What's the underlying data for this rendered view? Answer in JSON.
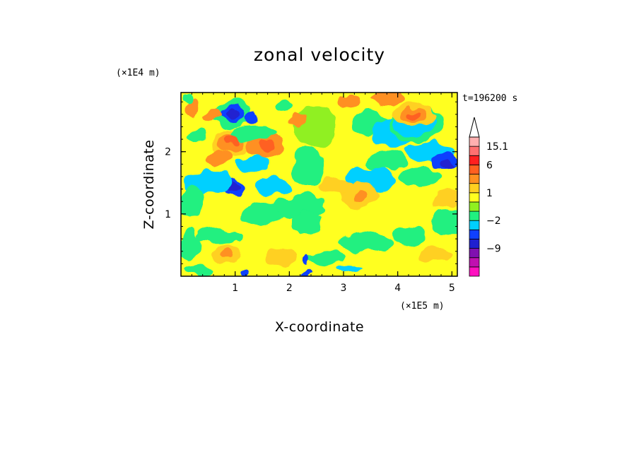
{
  "chart_data": {
    "type": "heatmap",
    "title": "zonal velocity",
    "xlabel": "X-coordinate",
    "ylabel": "Z-coordinate",
    "x_unit": "(×1E5 m)",
    "y_unit": "(×1E4 m)",
    "time_label": "t=196200 s",
    "xlim": [
      0.0,
      5.1
    ],
    "ylim": [
      0.0,
      2.95
    ],
    "x_ticks": [
      1,
      2,
      3,
      4,
      5
    ],
    "y_ticks": [
      1,
      2
    ],
    "colorbar": {
      "levels": [
        {
          "color": "#ff10c0"
        },
        {
          "color": "#c010b0"
        },
        {
          "color": "#8010b0"
        },
        {
          "color": "#2020d0"
        },
        {
          "color": "#1040ff"
        },
        {
          "color": "#00d0ff"
        },
        {
          "color": "#20f080"
        },
        {
          "color": "#90f020"
        },
        {
          "color": "#ffff20"
        },
        {
          "color": "#ffd020"
        },
        {
          "color": "#ff9020"
        },
        {
          "color": "#ff6020"
        },
        {
          "color": "#ff2020"
        },
        {
          "color": "#ff7070"
        },
        {
          "color": "#ffb0b0"
        }
      ],
      "labels": [
        {
          "text": "15.1",
          "level_top": 14
        },
        {
          "text": "6",
          "level_top": 12
        },
        {
          "text": "1",
          "level_top": 9
        },
        {
          "text": "−2",
          "level_top": 6
        },
        {
          "text": "−9",
          "level_top": 3
        }
      ]
    },
    "base_color": "#ffff20",
    "features": [
      {
        "x": 0.95,
        "z": 2.6,
        "rx": 0.35,
        "rz": 0.22,
        "color": "#20f080"
      },
      {
        "x": 0.95,
        "z": 2.6,
        "rx": 0.22,
        "rz": 0.14,
        "color": "#1040ff"
      },
      {
        "x": 0.95,
        "z": 2.6,
        "rx": 0.12,
        "rz": 0.08,
        "color": "#2020d0"
      },
      {
        "x": 1.3,
        "z": 2.55,
        "rx": 0.12,
        "rz": 0.1,
        "color": "#1040ff"
      },
      {
        "x": 0.6,
        "z": 2.6,
        "rx": 0.15,
        "rz": 0.1,
        "color": "#ff9020"
      },
      {
        "x": 0.2,
        "z": 2.7,
        "rx": 0.15,
        "rz": 0.12,
        "color": "#ff9020"
      },
      {
        "x": 0.9,
        "z": 2.15,
        "rx": 0.35,
        "rz": 0.22,
        "color": "#ffd020"
      },
      {
        "x": 0.9,
        "z": 2.15,
        "rx": 0.25,
        "rz": 0.15,
        "color": "#ff9020"
      },
      {
        "x": 0.95,
        "z": 2.2,
        "rx": 0.12,
        "rz": 0.07,
        "color": "#ff6020"
      },
      {
        "x": 1.55,
        "z": 2.1,
        "rx": 0.35,
        "rz": 0.2,
        "color": "#ff9020"
      },
      {
        "x": 1.6,
        "z": 2.1,
        "rx": 0.15,
        "rz": 0.08,
        "color": "#ff6020"
      },
      {
        "x": 0.7,
        "z": 1.9,
        "rx": 0.22,
        "rz": 0.12,
        "color": "#ff9020"
      },
      {
        "x": 1.35,
        "z": 1.8,
        "rx": 0.35,
        "rz": 0.12,
        "color": "#00d0ff"
      },
      {
        "x": 1.35,
        "z": 2.3,
        "rx": 0.4,
        "rz": 0.12,
        "color": "#20f080"
      },
      {
        "x": 0.95,
        "z": 1.45,
        "rx": 0.2,
        "rz": 0.12,
        "color": "#1040ff"
      },
      {
        "x": 0.95,
        "z": 1.45,
        "rx": 0.12,
        "rz": 0.07,
        "color": "#2020d0"
      },
      {
        "x": 0.5,
        "z": 1.5,
        "rx": 0.45,
        "rz": 0.2,
        "color": "#00d0ff"
      },
      {
        "x": 1.7,
        "z": 1.45,
        "rx": 0.3,
        "rz": 0.15,
        "color": "#00d0ff"
      },
      {
        "x": 0.2,
        "z": 1.2,
        "rx": 0.2,
        "rz": 0.25,
        "color": "#20f080"
      },
      {
        "x": 1.5,
        "z": 1.0,
        "rx": 0.4,
        "rz": 0.18,
        "color": "#20f080"
      },
      {
        "x": 2.2,
        "z": 1.1,
        "rx": 0.45,
        "rz": 0.2,
        "color": "#20f080"
      },
      {
        "x": 2.35,
        "z": 1.75,
        "rx": 0.3,
        "rz": 0.3,
        "color": "#20f080"
      },
      {
        "x": 2.5,
        "z": 2.4,
        "rx": 0.4,
        "rz": 0.35,
        "color": "#90f020"
      },
      {
        "x": 2.15,
        "z": 2.5,
        "rx": 0.15,
        "rz": 0.1,
        "color": "#ff9020"
      },
      {
        "x": 3.5,
        "z": 2.45,
        "rx": 0.35,
        "rz": 0.2,
        "color": "#20f080"
      },
      {
        "x": 3.1,
        "z": 2.8,
        "rx": 0.2,
        "rz": 0.1,
        "color": "#ff9020"
      },
      {
        "x": 3.9,
        "z": 2.3,
        "rx": 0.4,
        "rz": 0.25,
        "color": "#00d0ff"
      },
      {
        "x": 4.35,
        "z": 2.45,
        "rx": 0.5,
        "rz": 0.3,
        "color": "#20f080"
      },
      {
        "x": 4.3,
        "z": 2.45,
        "rx": 0.4,
        "rz": 0.2,
        "color": "#00d0ff"
      },
      {
        "x": 4.6,
        "z": 2.0,
        "rx": 0.45,
        "rz": 0.15,
        "color": "#00d0ff"
      },
      {
        "x": 4.85,
        "z": 1.85,
        "rx": 0.25,
        "rz": 0.12,
        "color": "#1040ff"
      },
      {
        "x": 4.9,
        "z": 1.8,
        "rx": 0.12,
        "rz": 0.06,
        "color": "#2020d0"
      },
      {
        "x": 4.3,
        "z": 2.6,
        "rx": 0.4,
        "rz": 0.18,
        "color": "#ffd020"
      },
      {
        "x": 4.3,
        "z": 2.6,
        "rx": 0.25,
        "rz": 0.12,
        "color": "#ff9020"
      },
      {
        "x": 4.3,
        "z": 2.6,
        "rx": 0.12,
        "rz": 0.06,
        "color": "#ff6020"
      },
      {
        "x": 3.8,
        "z": 2.85,
        "rx": 0.3,
        "rz": 0.12,
        "color": "#ff9020"
      },
      {
        "x": 3.5,
        "z": 1.55,
        "rx": 0.45,
        "rz": 0.2,
        "color": "#00d0ff"
      },
      {
        "x": 3.8,
        "z": 1.85,
        "rx": 0.35,
        "rz": 0.15,
        "color": "#20f080"
      },
      {
        "x": 3.3,
        "z": 1.3,
        "rx": 0.35,
        "rz": 0.2,
        "color": "#ffd020"
      },
      {
        "x": 3.3,
        "z": 1.3,
        "rx": 0.15,
        "rz": 0.1,
        "color": "#ff9020"
      },
      {
        "x": 2.85,
        "z": 1.45,
        "rx": 0.3,
        "rz": 0.15,
        "color": "#ffd020"
      },
      {
        "x": 4.9,
        "z": 1.25,
        "rx": 0.3,
        "rz": 0.15,
        "color": "#ffd020"
      },
      {
        "x": 4.4,
        "z": 1.6,
        "rx": 0.4,
        "rz": 0.15,
        "color": "#20f080"
      },
      {
        "x": 4.9,
        "z": 0.85,
        "rx": 0.3,
        "rz": 0.2,
        "color": "#20f080"
      },
      {
        "x": 4.2,
        "z": 0.65,
        "rx": 0.3,
        "rz": 0.15,
        "color": "#20f080"
      },
      {
        "x": 3.4,
        "z": 0.55,
        "rx": 0.5,
        "rz": 0.15,
        "color": "#20f080"
      },
      {
        "x": 2.3,
        "z": 0.85,
        "rx": 0.25,
        "rz": 0.2,
        "color": "#20f080"
      },
      {
        "x": 2.7,
        "z": 0.3,
        "rx": 0.35,
        "rz": 0.1,
        "color": "#20f080"
      },
      {
        "x": 0.15,
        "z": 0.5,
        "rx": 0.2,
        "rz": 0.25,
        "color": "#20f080"
      },
      {
        "x": 0.7,
        "z": 0.65,
        "rx": 0.4,
        "rz": 0.12,
        "color": "#20f080"
      },
      {
        "x": 0.85,
        "z": 0.35,
        "rx": 0.25,
        "rz": 0.15,
        "color": "#ffd020"
      },
      {
        "x": 0.85,
        "z": 0.35,
        "rx": 0.12,
        "rz": 0.08,
        "color": "#ff9020"
      },
      {
        "x": 0.3,
        "z": 0.1,
        "rx": 0.25,
        "rz": 0.08,
        "color": "#20f080"
      },
      {
        "x": 1.2,
        "z": 0.05,
        "rx": 0.1,
        "rz": 0.06,
        "color": "#1040ff"
      },
      {
        "x": 2.35,
        "z": 0.25,
        "rx": 0.05,
        "rz": 0.1,
        "color": "#1040ff"
      },
      {
        "x": 2.3,
        "z": 0.05,
        "rx": 0.12,
        "rz": 0.05,
        "color": "#1040ff"
      },
      {
        "x": 3.1,
        "z": 0.1,
        "rx": 0.25,
        "rz": 0.07,
        "color": "#00d0ff"
      },
      {
        "x": 1.85,
        "z": 0.3,
        "rx": 0.3,
        "rz": 0.15,
        "color": "#ffd020"
      },
      {
        "x": 4.7,
        "z": 0.35,
        "rx": 0.3,
        "rz": 0.12,
        "color": "#ffd020"
      },
      {
        "x": 0.3,
        "z": 2.25,
        "rx": 0.15,
        "rz": 0.12,
        "color": "#20f080"
      },
      {
        "x": 1.9,
        "z": 2.75,
        "rx": 0.15,
        "rz": 0.1,
        "color": "#20f080"
      },
      {
        "x": 0.1,
        "z": 2.85,
        "rx": 0.1,
        "rz": 0.08,
        "color": "#20f080"
      }
    ]
  }
}
